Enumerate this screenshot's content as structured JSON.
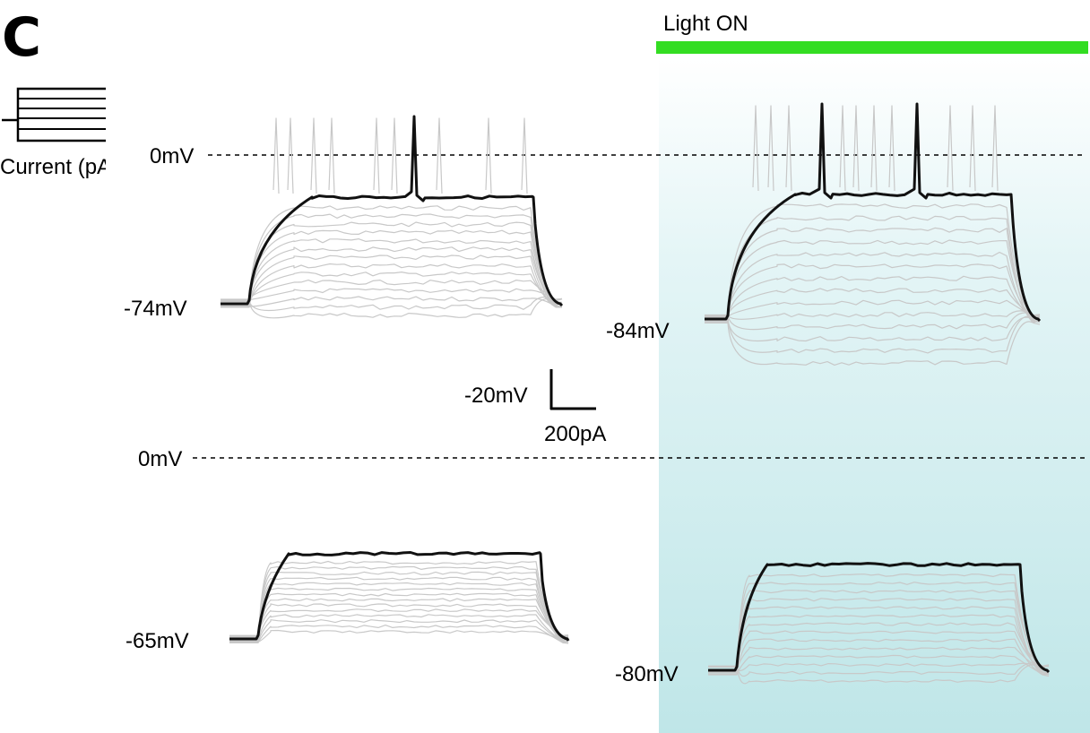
{
  "panel_letter": "C",
  "light_bar": {
    "label": "Light ON",
    "color": "#33dd22"
  },
  "light_region_color": "#cfeef0",
  "protocol_legend": {
    "label": "Current (pA)"
  },
  "zero_label": "0mV",
  "scale_bar": {
    "voltage_label": "-20mV",
    "current_label": "200pA"
  },
  "trace_colors": {
    "highlight": "#111111",
    "background": "#c8c8c8"
  },
  "panels": [
    {
      "id": "top-left",
      "rest_label": "-74mV",
      "zero_line": true,
      "condition": "light-off"
    },
    {
      "id": "top-right",
      "rest_label": "-84mV",
      "zero_line": true,
      "condition": "light-on"
    },
    {
      "id": "bottom-left",
      "rest_label": "-65mV",
      "zero_line": true,
      "condition": "light-off"
    },
    {
      "id": "bottom-right",
      "rest_label": "-80mV",
      "zero_line": true,
      "condition": "light-on"
    }
  ]
}
